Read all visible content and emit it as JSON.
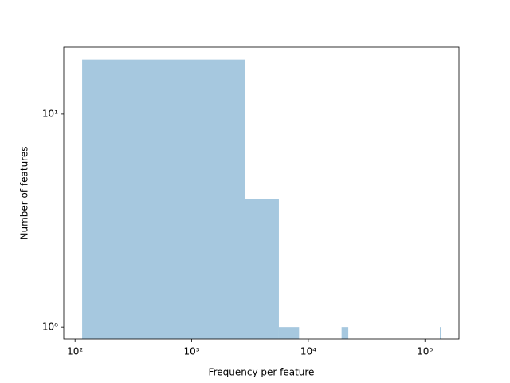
{
  "chart_data": {
    "type": "histogram",
    "xlabel": "Frequency per feature",
    "ylabel": "Number of features",
    "bins": [
      115,
      2855,
      5595,
      8335,
      11075,
      13815,
      16555,
      19295,
      22035,
      24775,
      27515,
      30255,
      32995,
      35735,
      38475,
      41215,
      43955,
      46695,
      49435,
      52175,
      54915,
      57655,
      60395,
      63135,
      65875,
      68615,
      71355,
      74095,
      76835,
      79575,
      82315,
      85055,
      87795,
      90535,
      93275,
      96015,
      98755,
      101495,
      104235,
      106975,
      109715,
      112455,
      115195,
      117935,
      120675,
      123415,
      126155,
      128895,
      131635,
      134375,
      137115
    ],
    "values": [
      18,
      4,
      1,
      0,
      0,
      0,
      0,
      1,
      0,
      0,
      0,
      0,
      0,
      0,
      0,
      0,
      0,
      0,
      0,
      0,
      0,
      0,
      0,
      0,
      0,
      0,
      0,
      0,
      0,
      0,
      0,
      0,
      0,
      0,
      0,
      0,
      0,
      0,
      0,
      0,
      0,
      0,
      0,
      0,
      0,
      0,
      0,
      0,
      0,
      1
    ],
    "color": "#a6c8df",
    "xscale": "log",
    "yscale": "log",
    "xlim": [
      80,
      196000
    ],
    "ylim": [
      0.88,
      20.6
    ],
    "xticks": [
      {
        "value": 100,
        "label": "10²"
      },
      {
        "value": 1000,
        "label": "10³"
      },
      {
        "value": 10000,
        "label": "10⁴"
      },
      {
        "value": 100000,
        "label": "10⁵"
      }
    ],
    "yticks": [
      {
        "value": 1,
        "label": "10⁰"
      },
      {
        "value": 10,
        "label": "10¹"
      }
    ]
  }
}
